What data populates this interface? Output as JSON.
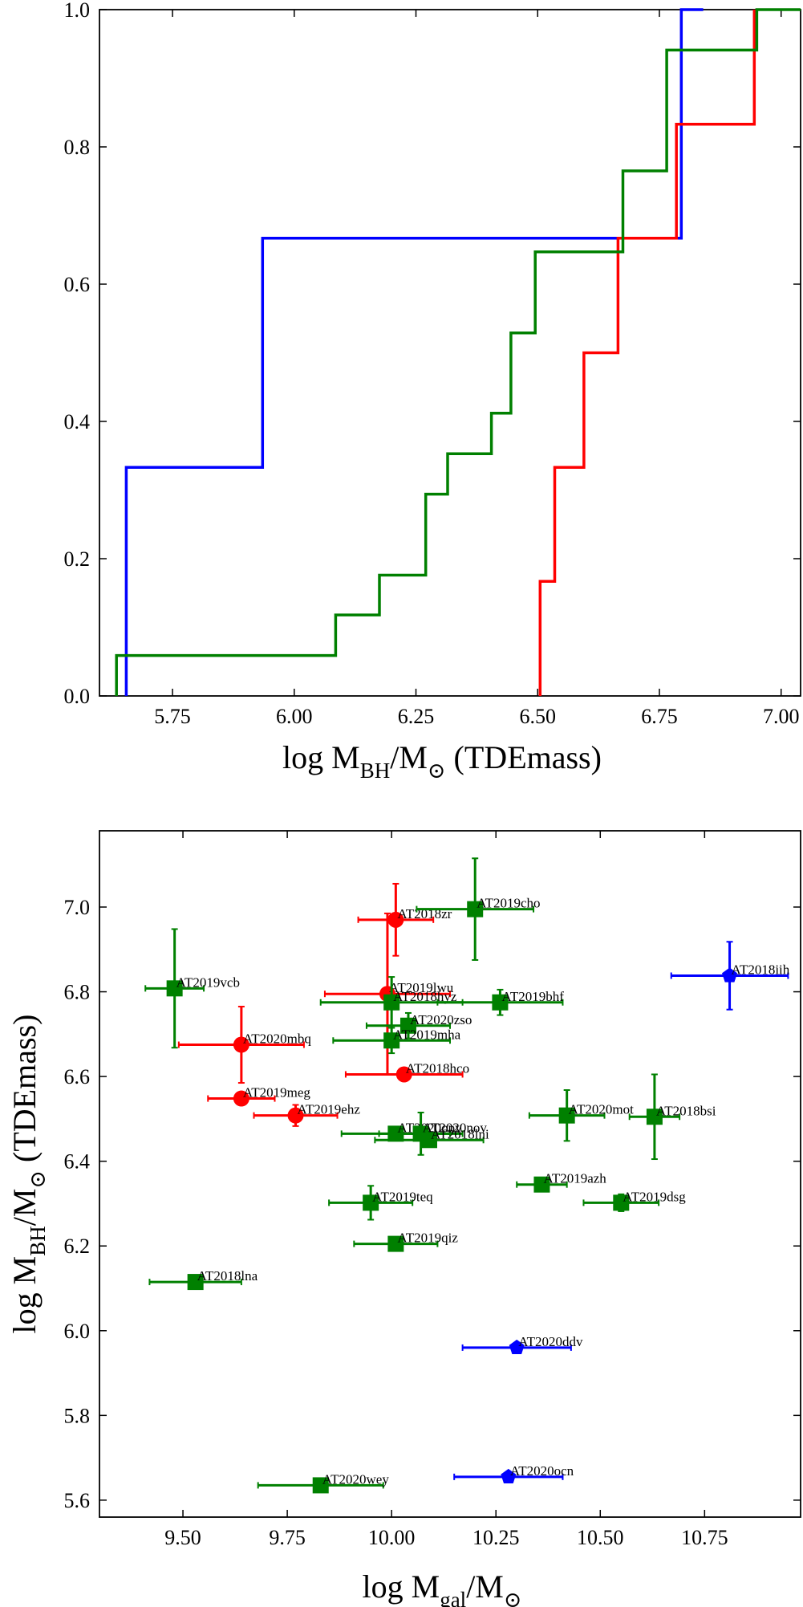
{
  "chart_data": [
    {
      "type": "line",
      "subtype": "cumulative-step",
      "xlim": [
        5.6,
        7.04
      ],
      "ylim": [
        0.0,
        1.0
      ],
      "xticks": [
        5.75,
        6.0,
        6.25,
        6.5,
        6.75,
        7.0
      ],
      "xtick_labels": [
        "5.75",
        "6.00",
        "6.25",
        "6.50",
        "6.75",
        "7.00"
      ],
      "yticks": [
        0.0,
        0.2,
        0.4,
        0.6,
        0.8,
        1.0
      ],
      "ytick_labels": [
        "0.0",
        "0.2",
        "0.4",
        "0.6",
        "0.8",
        "1.0"
      ],
      "xlabel": {
        "main": "log M",
        "sub1": "BH",
        "mid": "/M",
        "sub2": "⊙",
        "tail": " (TDEmass)"
      },
      "ylabel": "",
      "series": [
        {
          "name": "blue",
          "color": "#0000ff",
          "steps": [
            [
              5.655,
              0.0
            ],
            [
              5.655,
              0.333
            ],
            [
              5.935,
              0.333
            ],
            [
              5.935,
              0.667
            ],
            [
              6.795,
              0.667
            ],
            [
              6.795,
              1.0
            ],
            [
              6.84,
              1.0
            ]
          ]
        },
        {
          "name": "red",
          "color": "#ff0000",
          "steps": [
            [
              6.505,
              0.0
            ],
            [
              6.505,
              0.167
            ],
            [
              6.535,
              0.167
            ],
            [
              6.535,
              0.333
            ],
            [
              6.595,
              0.333
            ],
            [
              6.595,
              0.5
            ],
            [
              6.665,
              0.5
            ],
            [
              6.665,
              0.667
            ],
            [
              6.785,
              0.667
            ],
            [
              6.785,
              0.833
            ],
            [
              6.945,
              0.833
            ],
            [
              6.945,
              1.0
            ]
          ]
        },
        {
          "name": "green",
          "color": "#008000",
          "steps": [
            [
              5.635,
              0.0
            ],
            [
              5.635,
              0.059
            ],
            [
              6.085,
              0.059
            ],
            [
              6.085,
              0.118
            ],
            [
              6.175,
              0.118
            ],
            [
              6.175,
              0.176
            ],
            [
              6.27,
              0.176
            ],
            [
              6.27,
              0.294
            ],
            [
              6.315,
              0.294
            ],
            [
              6.315,
              0.353
            ],
            [
              6.405,
              0.353
            ],
            [
              6.405,
              0.412
            ],
            [
              6.445,
              0.412
            ],
            [
              6.445,
              0.529
            ],
            [
              6.495,
              0.529
            ],
            [
              6.495,
              0.647
            ],
            [
              6.675,
              0.647
            ],
            [
              6.675,
              0.765
            ],
            [
              6.765,
              0.765
            ],
            [
              6.765,
              0.941
            ],
            [
              6.95,
              0.941
            ],
            [
              6.95,
              1.0
            ],
            [
              7.04,
              1.0
            ]
          ]
        }
      ]
    },
    {
      "type": "scatter",
      "xlim": [
        9.3,
        10.98
      ],
      "ylim": [
        5.56,
        7.18
      ],
      "xticks": [
        9.5,
        9.75,
        10.0,
        10.25,
        10.5,
        10.75
      ],
      "xtick_labels": [
        "9.50",
        "9.75",
        "10.00",
        "10.25",
        "10.50",
        "10.75"
      ],
      "yticks": [
        5.6,
        5.8,
        6.0,
        6.2,
        6.4,
        6.6,
        6.8,
        7.0
      ],
      "ytick_labels": [
        "5.6",
        "5.8",
        "6.0",
        "6.2",
        "6.4",
        "6.6",
        "6.8",
        "7.0"
      ],
      "xlabel": {
        "main": "log M",
        "sub1": "gal",
        "mid": "/M",
        "sub2": "⊙",
        "tail": ""
      },
      "ylabel": {
        "main": "log M",
        "sub1": "BH",
        "mid": "/M",
        "sub2": "⊙",
        "tail": " (TDEmass)"
      },
      "series": [
        {
          "name": "red",
          "color": "#ff0000",
          "marker": "circle",
          "points": [
            {
              "label": "AT2018zr",
              "x": 10.01,
              "y": 6.97,
              "xerr": 0.09,
              "yerr": 0.085
            },
            {
              "label": "AT2019lwu",
              "x": 9.99,
              "y": 6.795,
              "xerr": 0.15,
              "yerr": 0.19
            },
            {
              "label": "AT2020mbq",
              "x": 9.64,
              "y": 6.675,
              "xerr": 0.15,
              "yerr": 0.09
            },
            {
              "label": "AT2018hco",
              "x": 10.03,
              "y": 6.605,
              "xerr": 0.14,
              "yerr": 0.0
            },
            {
              "label": "AT2019meg",
              "x": 9.64,
              "y": 6.548,
              "xerr": 0.08,
              "yerr": 0.0
            },
            {
              "label": "AT2019ehz",
              "x": 9.77,
              "y": 6.508,
              "xerr": 0.1,
              "yerr": 0.025
            }
          ]
        },
        {
          "name": "green",
          "color": "#008000",
          "marker": "square",
          "points": [
            {
              "label": "AT2019cho",
              "x": 10.2,
              "y": 6.995,
              "xerr": 0.14,
              "yerr": 0.12
            },
            {
              "label": "AT2019vcb",
              "x": 9.48,
              "y": 6.808,
              "xerr": 0.07,
              "yerr": 0.14
            },
            {
              "label": "AT2018hyz",
              "x": 10.0,
              "y": 6.775,
              "xerr": 0.17,
              "yerr": 0.06
            },
            {
              "label": "AT2019bhf",
              "x": 10.26,
              "y": 6.775,
              "xerr": 0.15,
              "yerr": 0.03
            },
            {
              "label": "AT2020zso",
              "x": 10.04,
              "y": 6.72,
              "xerr": 0.1,
              "yerr": 0.03
            },
            {
              "label": "AT2019mha",
              "x": 10.0,
              "y": 6.685,
              "xerr": 0.14,
              "yerr": 0.03
            },
            {
              "label": "AT2020mot",
              "x": 10.42,
              "y": 6.508,
              "xerr": 0.09,
              "yerr": 0.06
            },
            {
              "label": "AT2018bsi",
              "x": 10.63,
              "y": 6.505,
              "xerr": 0.06,
              "yerr": 0.1
            },
            {
              "label": "AT2020opy",
              "x": 10.01,
              "y": 6.465,
              "xerr": 0.13,
              "yerr": 0.0
            },
            {
              "label": "AT2020nov",
              "x": 10.07,
              "y": 6.465,
              "xerr": 0.1,
              "yerr": 0.05
            },
            {
              "label": "AT2018lni",
              "x": 10.09,
              "y": 6.45,
              "xerr": 0.13,
              "yerr": 0.0
            },
            {
              "label": "AT2019azh",
              "x": 10.36,
              "y": 6.345,
              "xerr": 0.06,
              "yerr": 0.0
            },
            {
              "label": "AT2019teq",
              "x": 9.95,
              "y": 6.302,
              "xerr": 0.1,
              "yerr": 0.04
            },
            {
              "label": "AT2019dsg",
              "x": 10.55,
              "y": 6.302,
              "xerr": 0.09,
              "yerr": 0.02
            },
            {
              "label": "AT2019qiz",
              "x": 10.01,
              "y": 6.205,
              "xerr": 0.1,
              "yerr": 0.0
            },
            {
              "label": "AT2018lna",
              "x": 9.53,
              "y": 6.115,
              "xerr": 0.11,
              "yerr": 0.0
            },
            {
              "label": "AT2020wey",
              "x": 9.83,
              "y": 5.635,
              "xerr": 0.15,
              "yerr": 0.0
            }
          ]
        },
        {
          "name": "blue",
          "color": "#0000ff",
          "marker": "pentagon",
          "points": [
            {
              "label": "AT2018iih",
              "x": 10.81,
              "y": 6.838,
              "xerr": 0.14,
              "yerr": 0.08
            },
            {
              "label": "AT2020ddv",
              "x": 10.3,
              "y": 5.96,
              "xerr": 0.13,
              "yerr": 0.0
            },
            {
              "label": "AT2020ocn",
              "x": 10.28,
              "y": 5.655,
              "xerr": 0.13,
              "yerr": 0.0
            }
          ]
        }
      ]
    }
  ]
}
